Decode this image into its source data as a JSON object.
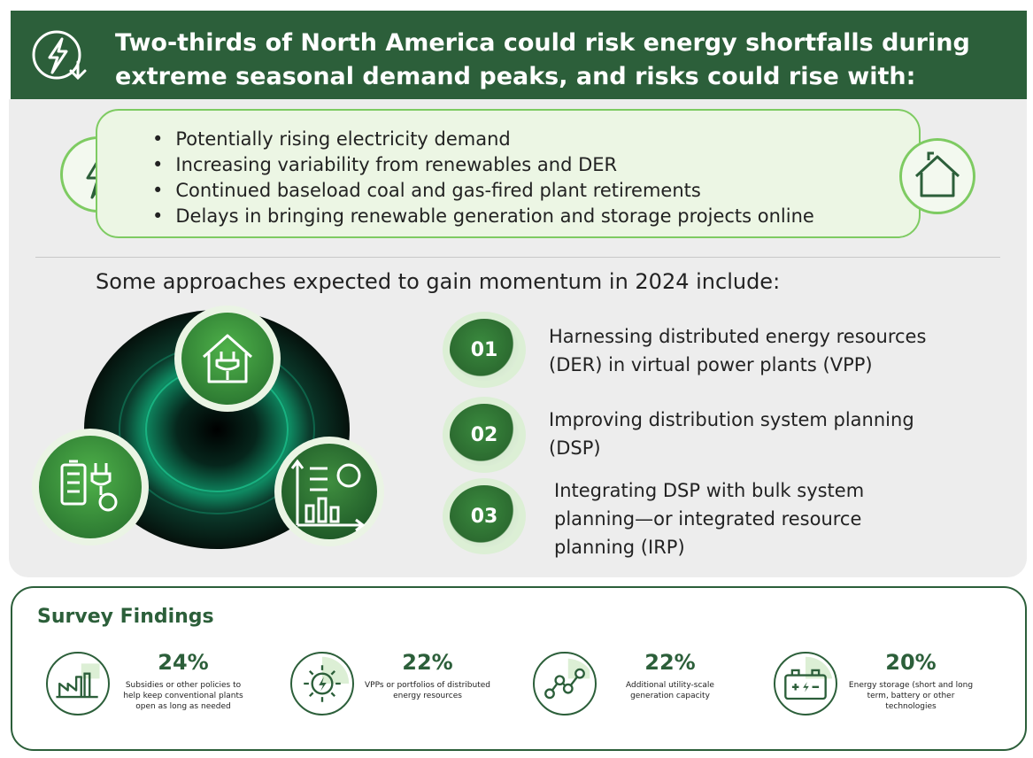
{
  "header": {
    "text": "Two-thirds of North America could risk energy shortfalls during extreme seasonal demand peaks, and risks could rise with:"
  },
  "risks": [
    "Potentially rising electricity demand",
    "Increasing variability from renewables and DER",
    "Continued baseload coal and gas-fired plant retirements",
    "Delays in bringing renewable generation and storage projects online"
  ],
  "subhead": "Some approaches expected to gain momentum in 2024 include:",
  "approaches": [
    {
      "num": "01",
      "line1": "Harnessing distributed energy resources",
      "line2": "(DER) in virtual power plants (VPP)",
      "line3": ""
    },
    {
      "num": "02",
      "line1": "Improving distribution system planning",
      "line2": "(DSP)",
      "line3": ""
    },
    {
      "num": "03",
      "line1": "Integrating DSP with bulk system",
      "line2": "planning—or integrated resource",
      "line3": "planning (IRP)"
    }
  ],
  "survey": {
    "title": "Survey Findings",
    "findings": [
      {
        "pct": "24%",
        "desc": "Subsidies or other policies to help keep conventional plants open as long as needed",
        "icon": "factory-icon"
      },
      {
        "pct": "22%",
        "desc": "VPPs or portfolios of distributed energy resources",
        "icon": "sun-bolt-icon"
      },
      {
        "pct": "22%",
        "desc": "Additional utility-scale generation capacity",
        "icon": "network-icon"
      },
      {
        "pct": "20%",
        "desc": "Energy storage (short and long term, battery or other technologies",
        "icon": "battery-icon"
      }
    ]
  },
  "colors": {
    "dark_green": "#2c5f3a",
    "light_green": "#7ecb62",
    "box_fill": "#ecf6e4",
    "panel_gray": "#ededed"
  }
}
